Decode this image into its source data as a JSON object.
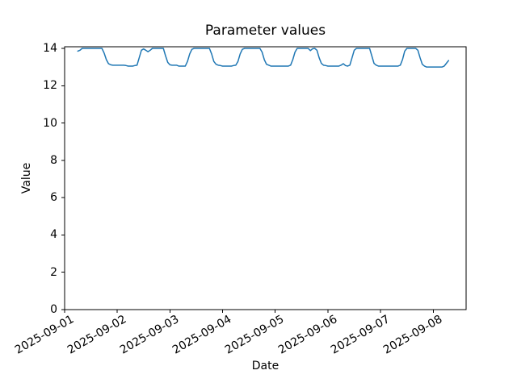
{
  "figure": {
    "title": "Parameter values",
    "xlabel": "Date",
    "ylabel": "Value"
  },
  "chart_data": {
    "type": "line",
    "title": "Parameter values",
    "xlabel": "Date",
    "ylabel": "Value",
    "grid": false,
    "legend_position": "none",
    "background_color": "#ffffff",
    "axis_color": "#000000",
    "y_ticks": [
      0,
      2,
      4,
      6,
      8,
      10,
      12,
      14
    ],
    "ylim": [
      0,
      14.09
    ],
    "x_tick_labels": [
      "2025-09-01",
      "2025-09-02",
      "2025-09-03",
      "2025-09-04",
      "2025-09-05",
      "2025-09-06",
      "2025-09-07",
      "2025-09-08"
    ],
    "x_tick_rotation_deg": 30,
    "series": [
      {
        "name": "Parameter values",
        "color": "#1f77b4",
        "start": "2025-09-01 06:00",
        "interval_hours": 1,
        "start_hour_offset": 6,
        "values": [
          13.85,
          13.9,
          14.0,
          14.0,
          14.0,
          14.0,
          14.0,
          14.0,
          14.0,
          14.0,
          14.0,
          14.0,
          13.75,
          13.4,
          13.18,
          13.12,
          13.1,
          13.1,
          13.1,
          13.1,
          13.1,
          13.1,
          13.08,
          13.05,
          13.05,
          13.05,
          13.08,
          13.1,
          13.5,
          13.9,
          13.97,
          13.9,
          13.82,
          13.9,
          14.0,
          14.0,
          14.0,
          14.0,
          14.0,
          14.0,
          13.6,
          13.25,
          13.12,
          13.1,
          13.1,
          13.1,
          13.05,
          13.05,
          13.05,
          13.05,
          13.3,
          13.7,
          13.95,
          14.0,
          14.0,
          14.0,
          14.0,
          14.0,
          14.0,
          14.0,
          14.0,
          13.7,
          13.3,
          13.15,
          13.1,
          13.08,
          13.05,
          13.05,
          13.05,
          13.05,
          13.05,
          13.08,
          13.1,
          13.3,
          13.7,
          13.95,
          14.0,
          14.0,
          14.0,
          14.0,
          14.0,
          14.0,
          14.0,
          14.0,
          13.8,
          13.4,
          13.15,
          13.1,
          13.05,
          13.05,
          13.05,
          13.05,
          13.05,
          13.05,
          13.05,
          13.05,
          13.05,
          13.1,
          13.4,
          13.8,
          14.0,
          14.0,
          14.0,
          14.0,
          14.0,
          14.0,
          13.88,
          13.98,
          14.0,
          13.9,
          13.5,
          13.2,
          13.1,
          13.08,
          13.05,
          13.05,
          13.05,
          13.05,
          13.05,
          13.05,
          13.1,
          13.18,
          13.08,
          13.05,
          13.1,
          13.5,
          13.9,
          14.0,
          14.0,
          14.0,
          14.0,
          14.0,
          14.0,
          14.0,
          13.6,
          13.2,
          13.1,
          13.05,
          13.05,
          13.05,
          13.05,
          13.05,
          13.05,
          13.05,
          13.05,
          13.05,
          13.05,
          13.1,
          13.4,
          13.85,
          14.0,
          14.0,
          14.0,
          14.0,
          14.0,
          13.9,
          13.5,
          13.15,
          13.05,
          13.0,
          13.0,
          13.0,
          13.0,
          13.0,
          13.0,
          13.0,
          13.0,
          13.05,
          13.2,
          13.35
        ]
      }
    ]
  }
}
